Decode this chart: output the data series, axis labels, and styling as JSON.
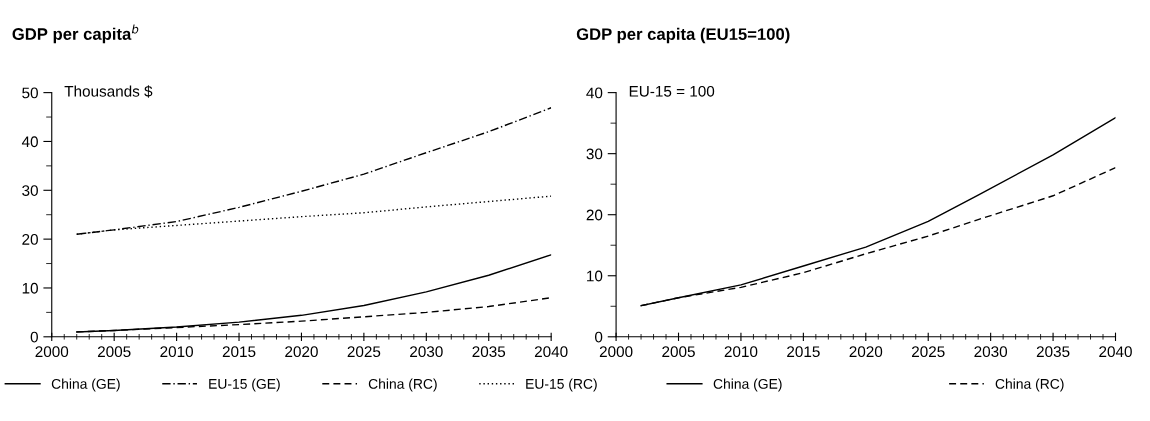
{
  "chart_data": [
    {
      "type": "line",
      "title": "GDP per capita$^{b}$",
      "ylabel": "Thousands $",
      "x": [
        2002,
        2005,
        2010,
        2015,
        2020,
        2025,
        2030,
        2035,
        2040
      ],
      "xlim": [
        2000,
        2040
      ],
      "xticks": [
        2000,
        2005,
        2010,
        2015,
        2020,
        2025,
        2030,
        2035,
        2040
      ],
      "ylim": [
        0,
        50
      ],
      "yticks": [
        0,
        10,
        20,
        30,
        40,
        50
      ],
      "grid": false,
      "legend": "bottom",
      "marker": "none",
      "series": [
        {
          "name": "China (GE)",
          "color": "#000000",
          "line_style": "solid",
          "values": [
            1.0,
            1.3,
            2.0,
            3.0,
            4.4,
            6.4,
            9.2,
            12.6,
            16.8
          ]
        },
        {
          "name": "EU-15 (GE)",
          "color": "#000000",
          "line_style": "dashdot",
          "values": [
            21.0,
            21.9,
            23.6,
            26.5,
            29.8,
            33.3,
            37.7,
            42.0,
            46.9
          ]
        },
        {
          "name": "China (RC)",
          "color": "#000000",
          "line_style": "dashed",
          "values": [
            1.0,
            1.3,
            1.9,
            2.5,
            3.2,
            4.1,
            5.0,
            6.2,
            8.0
          ]
        },
        {
          "name": "EU-15 (RC)",
          "color": "#000000",
          "line_style": "dotted",
          "values": [
            21.0,
            21.9,
            22.8,
            23.7,
            24.6,
            25.4,
            26.6,
            27.7,
            28.8
          ]
        }
      ]
    },
    {
      "type": "line",
      "title": "GDP per capita (EU15=100)",
      "ylabel": "EU-15 = 100",
      "x": [
        2002,
        2005,
        2010,
        2015,
        2020,
        2025,
        2029,
        2035,
        2040
      ],
      "xlim": [
        2000,
        2040
      ],
      "xticks": [
        2000,
        2005,
        2010,
        2015,
        2020,
        2025,
        2030,
        2035,
        2040
      ],
      "ylim": [
        0,
        40
      ],
      "yticks": [
        0,
        10,
        20,
        30,
        40
      ],
      "grid": false,
      "legend": "bottom",
      "marker": "none",
      "series": [
        {
          "name": "China (GE)",
          "color": "#000000",
          "line_style": "solid",
          "values": [
            5.1,
            6.4,
            8.5,
            11.6,
            14.7,
            18.9,
            23.2,
            29.8,
            35.9
          ]
        },
        {
          "name": "China (RC)",
          "color": "#000000",
          "line_style": "dashed",
          "values": [
            5.1,
            6.4,
            8.1,
            10.5,
            13.6,
            16.5,
            19.2,
            23.1,
            27.7
          ]
        }
      ]
    }
  ]
}
